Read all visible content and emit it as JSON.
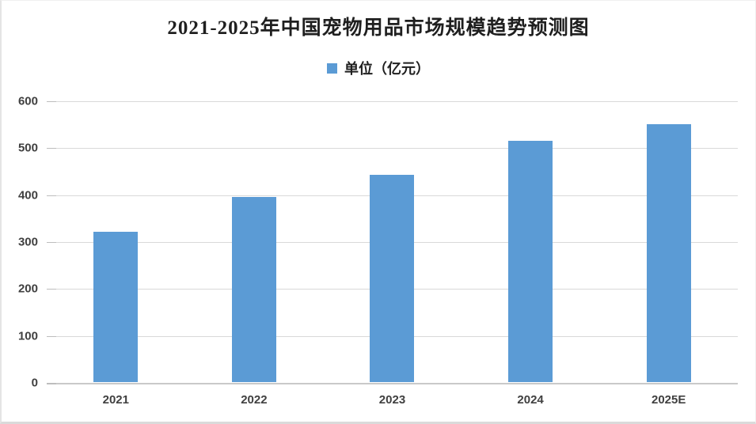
{
  "page": {
    "background": "#ffffff"
  },
  "chart_data": {
    "type": "bar",
    "title": "2021-2025年中国宠物用品市场规模趋势预测图",
    "legend_entries": [
      "单位（亿元）"
    ],
    "legend_position": "top",
    "categories": [
      "2021",
      "2022",
      "2023",
      "2024",
      "2025E"
    ],
    "values": [
      320,
      395,
      441,
      514,
      550
    ],
    "xlabel": "",
    "ylabel": "",
    "ylim": [
      0,
      600
    ],
    "yticks": [
      0,
      100,
      200,
      300,
      400,
      500,
      600
    ],
    "grid": true,
    "bar_color": "#5B9BD5",
    "gridline_color": "#D9D9D9",
    "axis_line_color": "#C9C9C9",
    "axis_label_color": "#404040",
    "title_color": "#1F1F1F"
  }
}
